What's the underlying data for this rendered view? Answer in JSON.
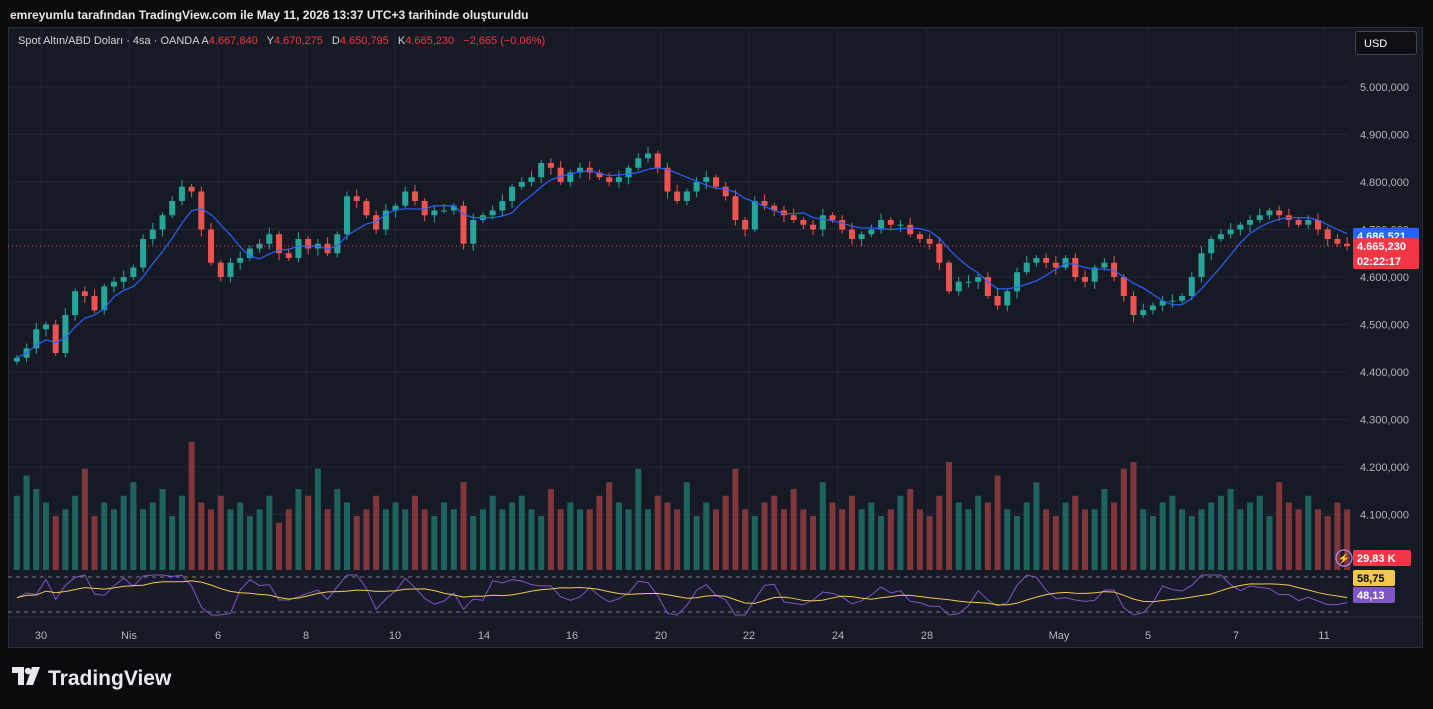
{
  "header": {
    "attribution": "emreyumlu tarafından TradingView.com ile May 11, 2026 13:37 UTC+3 tarihinde oluşturuldu"
  },
  "legend": {
    "symbol": "Spot Altın/ABD Doları · 4sa · OANDA",
    "open_label": "A",
    "open": "4.667,840",
    "high_label": "Y",
    "high": "4.670,275",
    "low_label": "D",
    "low": "4.650,795",
    "close_label": "K",
    "close": "4.665,230",
    "change": "−2,665 (−0,06%)"
  },
  "currency_button": "USD",
  "brand": {
    "name": "TradingView"
  },
  "colors": {
    "up": "#26a69a",
    "down": "#ef5350",
    "ma": "#2962ff",
    "rsi": "#7e57c2",
    "rsi_ma": "#f2c94c",
    "bg": "#161a25",
    "grid": "#232733",
    "axis_text": "#b2b5be"
  },
  "chart_data": {
    "type": "candlestick",
    "symbol": "Spot Altın/ABD Doları",
    "interval": "4sa",
    "exchange": "OANDA",
    "y_range": [
      4400000,
      5000000
    ],
    "y_ticks": [
      "5.000,000",
      "4.900,000",
      "4.800,000",
      "4.700,000",
      "4.600,000",
      "4.500,000",
      "4.400,000",
      "4.300,000",
      "4.200,000",
      "4.100,000"
    ],
    "x_ticks": [
      "30",
      "Nis",
      "6",
      "8",
      "10",
      "14",
      "16",
      "20",
      "22",
      "24",
      "28",
      "May",
      "5",
      "7",
      "11"
    ],
    "price_markers": {
      "ma_last": "4.686,521",
      "last_price": "4.665,230",
      "countdown": "02:22:17"
    },
    "volume_marker": "29,83 K",
    "rsi_markers": {
      "rsi_ma": "58,75",
      "rsi": "48,13"
    },
    "closes": [
      4430,
      4450,
      4490,
      4500,
      4440,
      4520,
      4570,
      4560,
      4530,
      4580,
      4590,
      4600,
      4620,
      4680,
      4700,
      4730,
      4760,
      4790,
      4780,
      4700,
      4630,
      4600,
      4630,
      4640,
      4660,
      4670,
      4690,
      4650,
      4640,
      4680,
      4660,
      4670,
      4650,
      4690,
      4770,
      4760,
      4730,
      4700,
      4740,
      4750,
      4780,
      4760,
      4730,
      4740,
      4740,
      4750,
      4670,
      4720,
      4730,
      4740,
      4760,
      4790,
      4800,
      4810,
      4840,
      4830,
      4800,
      4820,
      4830,
      4820,
      4810,
      4800,
      4810,
      4830,
      4850,
      4860,
      4830,
      4780,
      4760,
      4780,
      4800,
      4810,
      4790,
      4770,
      4720,
      4700,
      4760,
      4750,
      4740,
      4730,
      4720,
      4710,
      4700,
      4730,
      4720,
      4700,
      4680,
      4690,
      4700,
      4720,
      4710,
      4710,
      4690,
      4680,
      4670,
      4630,
      4570,
      4590,
      4590,
      4600,
      4560,
      4540,
      4570,
      4610,
      4630,
      4640,
      4630,
      4620,
      4640,
      4600,
      4590,
      4620,
      4630,
      4600,
      4560,
      4520,
      4530,
      4540,
      4550,
      4550,
      4560,
      4600,
      4650,
      4680,
      4690,
      4700,
      4710,
      4720,
      4730,
      4740,
      4730,
      4720,
      4710,
      4720,
      4700,
      4680,
      4670,
      4665
    ],
    "volumes": [
      0.55,
      0.7,
      0.6,
      0.5,
      0.4,
      0.45,
      0.55,
      0.75,
      0.4,
      0.5,
      0.45,
      0.55,
      0.65,
      0.45,
      0.5,
      0.6,
      0.4,
      0.55,
      0.95,
      0.5,
      0.45,
      0.55,
      0.45,
      0.5,
      0.4,
      0.45,
      0.55,
      0.35,
      0.45,
      0.6,
      0.55,
      0.75,
      0.45,
      0.6,
      0.5,
      0.4,
      0.45,
      0.55,
      0.45,
      0.5,
      0.45,
      0.55,
      0.45,
      0.4,
      0.5,
      0.45,
      0.65,
      0.4,
      0.45,
      0.55,
      0.45,
      0.5,
      0.55,
      0.45,
      0.4,
      0.6,
      0.45,
      0.5,
      0.45,
      0.45,
      0.55,
      0.65,
      0.5,
      0.45,
      0.75,
      0.45,
      0.55,
      0.5,
      0.45,
      0.65,
      0.4,
      0.5,
      0.45,
      0.55,
      0.75,
      0.45,
      0.4,
      0.5,
      0.55,
      0.45,
      0.6,
      0.45,
      0.4,
      0.65,
      0.5,
      0.45,
      0.55,
      0.45,
      0.5,
      0.4,
      0.45,
      0.55,
      0.6,
      0.45,
      0.4,
      0.55,
      0.8,
      0.5,
      0.45,
      0.55,
      0.5,
      0.7,
      0.45,
      0.4,
      0.5,
      0.65,
      0.45,
      0.4,
      0.5,
      0.55,
      0.45,
      0.45,
      0.6,
      0.5,
      0.75,
      0.8,
      0.45,
      0.4,
      0.5,
      0.55,
      0.45,
      0.4,
      0.45,
      0.5,
      0.55,
      0.6,
      0.45,
      0.5,
      0.55,
      0.4,
      0.65,
      0.5,
      0.45,
      0.55,
      0.45,
      0.4,
      0.5,
      0.45
    ]
  }
}
